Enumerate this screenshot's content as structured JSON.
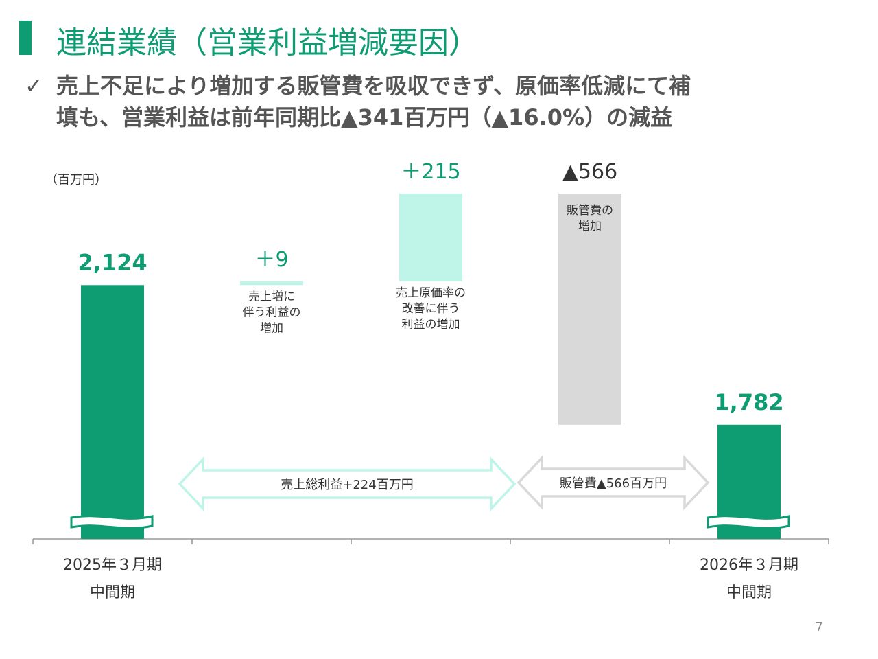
{
  "slide": {
    "title": "連結業績（営業利益増減要因）",
    "bullet_icon": "check-icon",
    "headline_lines": [
      "売上不足により増加する販管費を吸収できず、原価率低減にて補",
      "填も、営業利益は前年同期比▲341百万円（▲16.0%）の減益"
    ],
    "page_number": "7"
  },
  "colors": {
    "base": "#0e9c72",
    "increase": "#bff5e8",
    "decrease": "#d9d9d9",
    "increase_text": "#0e9c72",
    "decrease_text": "#333333"
  },
  "chart_data": {
    "type": "waterfall",
    "unit_label": "（百万円）",
    "steps": [
      {
        "kind": "base",
        "value": 2124,
        "label_top": "2,124",
        "desc": [],
        "axis": [
          "2025年３月期",
          "中間期"
        ]
      },
      {
        "kind": "increase",
        "value": 9,
        "label_top": "＋9",
        "desc": [
          "売上増に",
          "伴う利益の",
          "増加"
        ],
        "axis": []
      },
      {
        "kind": "increase",
        "value": 215,
        "label_top": "＋215",
        "desc": [
          "売上原価率の",
          "改善に伴う",
          "利益の増加"
        ],
        "axis": []
      },
      {
        "kind": "decrease",
        "value": -566,
        "label_top": "▲566",
        "desc": [
          "販管費の",
          "増加"
        ],
        "axis": []
      },
      {
        "kind": "base",
        "value": 1782,
        "label_top": "1,782",
        "desc": [],
        "axis": [
          "2026年３月期",
          "中間期"
        ]
      }
    ],
    "brackets": [
      {
        "label": "売上総利益+224百万円",
        "from_step": 1,
        "to_step": 2,
        "color": "#bff5e8"
      },
      {
        "label": "販管費▲566百万円",
        "from_step": 3,
        "to_step": 3,
        "color": "#d9d9d9"
      }
    ]
  }
}
